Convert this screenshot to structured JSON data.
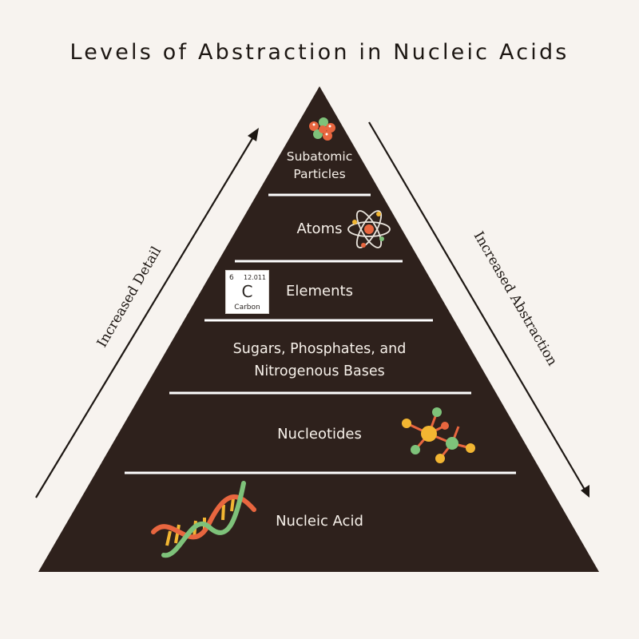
{
  "title": "Levels of Abstraction in Nucleic Acids",
  "levels": {
    "subatomic_line1": "Subatomic",
    "subatomic_line2": "Particles",
    "atoms": "Atoms",
    "elements": "Elements",
    "sugars_line1": "Sugars, Phosphates, and",
    "sugars_line2": "Nitrogenous Bases",
    "nucleotides": "Nucleotides",
    "nucleic_acid": "Nucleic Acid"
  },
  "element_card": {
    "atomic_number": "6",
    "atomic_mass": "12.011",
    "symbol": "C",
    "name": "Carbon"
  },
  "arrows": {
    "left_label": "Increased Detail",
    "right_label": "Increased Abstraction"
  },
  "colors": {
    "background": "#f7f3ef",
    "pyramid": "#2e211c",
    "divider": "#ffffff",
    "text_light": "#f7f1ea",
    "accent_orange": "#e8663f",
    "accent_green": "#7ec27a",
    "accent_yellow": "#f2b632"
  }
}
